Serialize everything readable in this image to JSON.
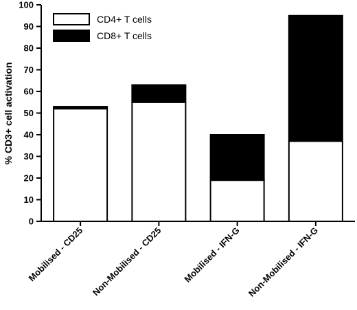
{
  "chart_data": {
    "type": "bar",
    "stacked": true,
    "categories": [
      "Mobilised - CD25",
      "Non-Mobilised - CD25",
      "Mobilised - IFN-G",
      "Non-Mobilised - IFN-G"
    ],
    "series": [
      {
        "name": "CD4+ T cells",
        "color": "#ffffff",
        "values": [
          52,
          55,
          19,
          37
        ]
      },
      {
        "name": "CD8+ T cells",
        "color": "#000000",
        "values": [
          1,
          8,
          21,
          58
        ]
      }
    ],
    "ylabel": "% CD3+ cell activation",
    "xlabel": "",
    "ylim": [
      0,
      100
    ],
    "yticks": [
      "0",
      "10",
      "20",
      "30",
      "40",
      "50",
      "60",
      "70",
      "80",
      "90",
      "100"
    ],
    "legend": "top-left",
    "grid": false
  }
}
